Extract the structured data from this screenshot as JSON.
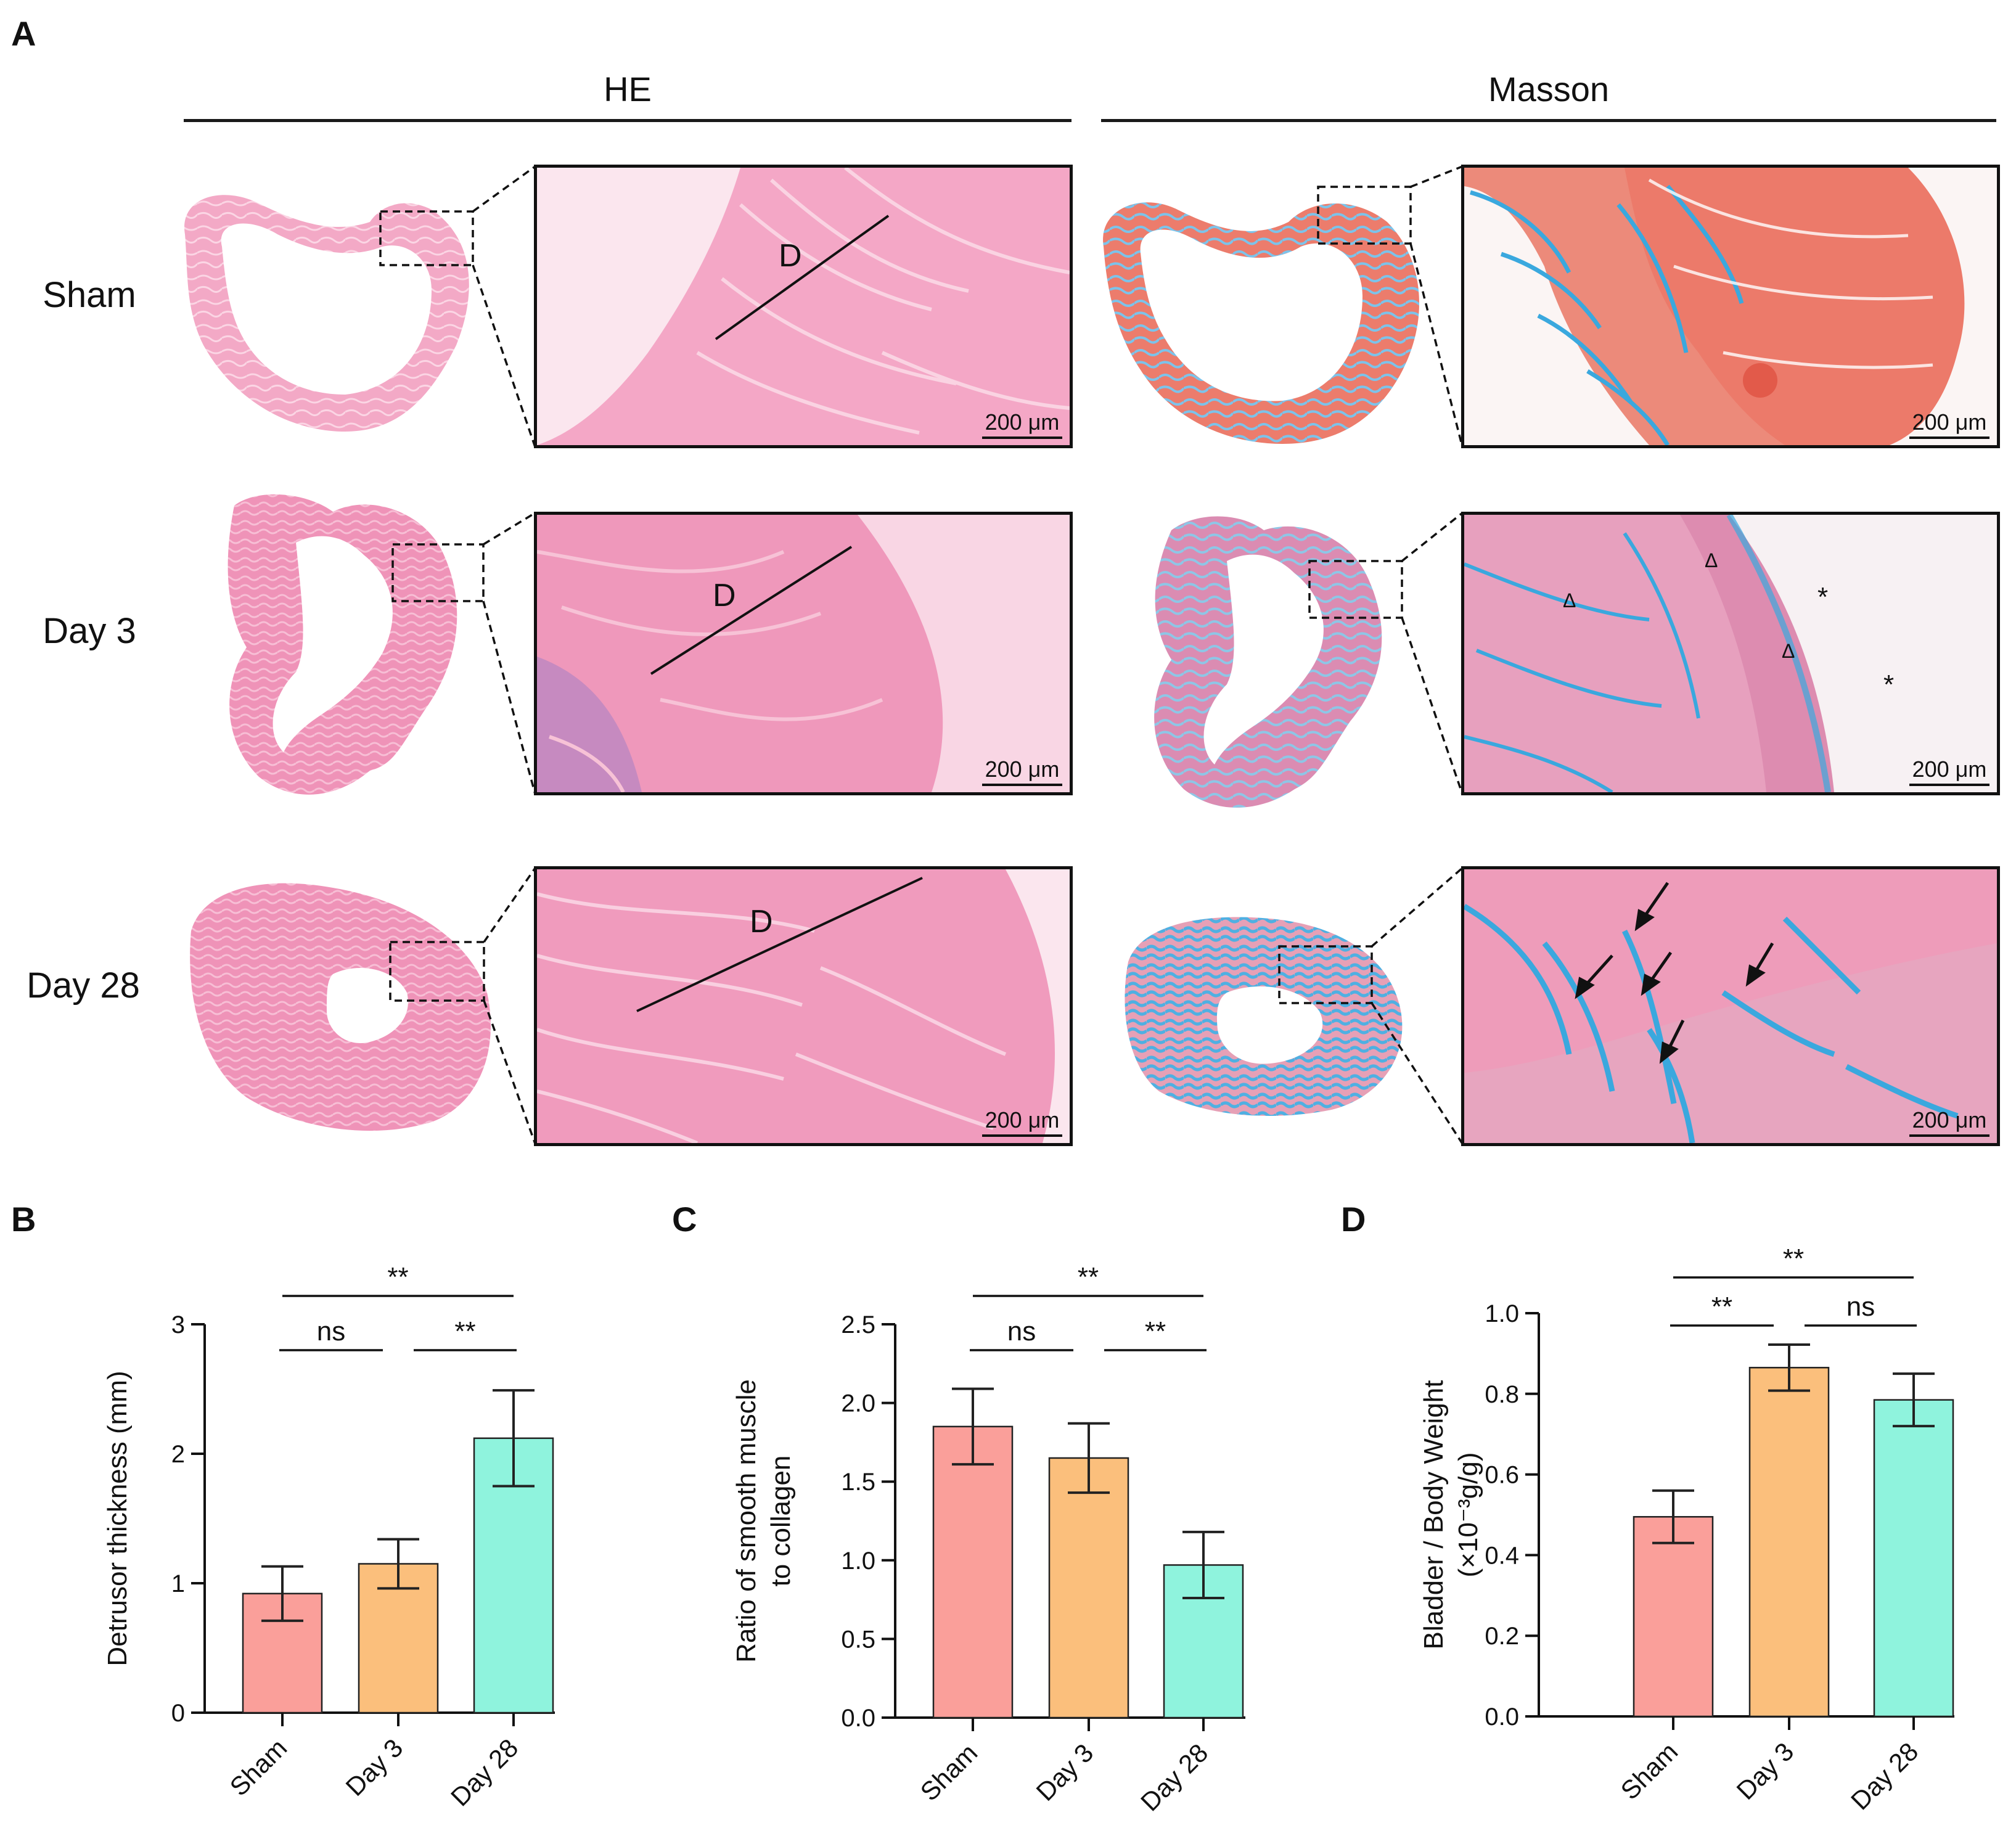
{
  "panel_A": {
    "label": "A",
    "headers": {
      "he": "HE",
      "masson": "Masson"
    },
    "rows": [
      "Sham",
      "Day 3",
      "Day 28"
    ],
    "scale_bar": "200 μm",
    "detrusor_marker": "D",
    "triangle_marker": "Δ",
    "star_marker": "*",
    "colors": {
      "he_pink": "#f0a0c0",
      "masson_red": "#e86f62",
      "masson_blue": "#3fa7dd",
      "masson_purple": "#d98ab0"
    }
  },
  "chart_data": [
    {
      "panel": "B",
      "type": "bar",
      "categories": [
        "Sham",
        "Day 3",
        "Day 28"
      ],
      "values": [
        0.92,
        1.15,
        2.12
      ],
      "errors": [
        0.21,
        0.19,
        0.37
      ],
      "colors": [
        "#fa9f9a",
        "#fbbf7c",
        "#8ff3dd"
      ],
      "ylabel": "Detrusor thickness (mm)",
      "ylim": [
        0,
        3
      ],
      "yticks": [
        0,
        1,
        2,
        3
      ],
      "significance": [
        {
          "from": 0,
          "to": 2,
          "label": "**"
        },
        {
          "from": 0,
          "to": 1,
          "label": "ns"
        },
        {
          "from": 1,
          "to": 2,
          "label": "**"
        }
      ]
    },
    {
      "panel": "C",
      "type": "bar",
      "categories": [
        "Sham",
        "Day 3",
        "Day 28"
      ],
      "values": [
        1.85,
        1.65,
        0.97
      ],
      "errors": [
        0.24,
        0.22,
        0.21
      ],
      "colors": [
        "#fa9f9a",
        "#fbbf7c",
        "#8ff3dd"
      ],
      "ylabel": "Ratio of smooth muscle",
      "ylabel2": "to collagen",
      "ylim": [
        0,
        2.5
      ],
      "yticks": [
        "0.0",
        "0.5",
        "1.0",
        "1.5",
        "2.0",
        "2.5"
      ],
      "significance": [
        {
          "from": 0,
          "to": 2,
          "label": "**"
        },
        {
          "from": 0,
          "to": 1,
          "label": "ns"
        },
        {
          "from": 1,
          "to": 2,
          "label": "**"
        }
      ]
    },
    {
      "panel": "D",
      "type": "bar",
      "categories": [
        "Sham",
        "Day 3",
        "Day 28"
      ],
      "values": [
        0.495,
        0.865,
        0.785
      ],
      "errors": [
        0.065,
        0.057,
        0.065
      ],
      "colors": [
        "#fa9f9a",
        "#fbbf7c",
        "#8ff3dd"
      ],
      "ylabel": "Bladder / Body Weight",
      "ylabel2": "(×10⁻³g/g)",
      "ylim": [
        0,
        1.0
      ],
      "yticks": [
        "0.0",
        "0.2",
        "0.4",
        "0.6",
        "0.8",
        "1.0"
      ],
      "significance": [
        {
          "from": 0,
          "to": 2,
          "label": "**"
        },
        {
          "from": 0,
          "to": 1,
          "label": "**"
        },
        {
          "from": 1,
          "to": 2,
          "label": "ns"
        }
      ]
    }
  ]
}
